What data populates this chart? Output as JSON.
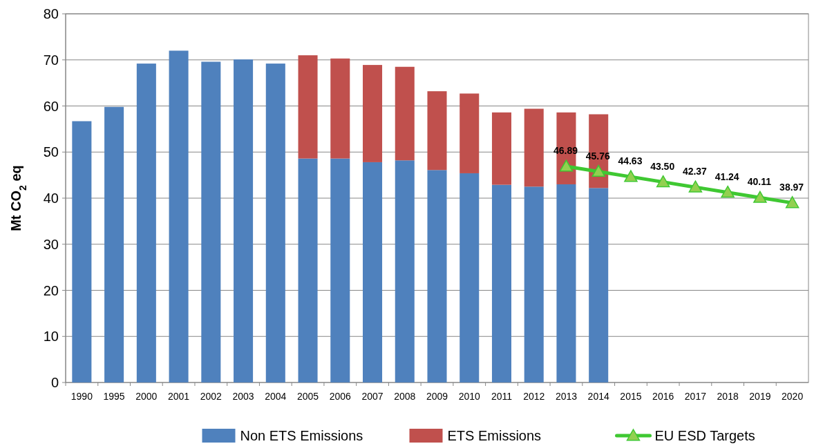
{
  "chart_data": {
    "type": "bar",
    "stacked": true,
    "ylabel": "Mt CO$_{2}$ eq",
    "categories": [
      "1990",
      "1995",
      "2000",
      "2001",
      "2002",
      "2003",
      "2004",
      "2005",
      "2006",
      "2007",
      "2008",
      "2009",
      "2010",
      "2011",
      "2012",
      "2013",
      "2014",
      "2015",
      "2016",
      "2017",
      "2018",
      "2019",
      "2020"
    ],
    "series": [
      {
        "name": "Non ETS Emissions",
        "color": "#4f81bd",
        "values": [
          56.7,
          59.8,
          69.2,
          72.0,
          69.6,
          70.1,
          69.2,
          48.6,
          48.6,
          47.8,
          48.2,
          46.1,
          45.4,
          42.9,
          42.5,
          43.0,
          42.2,
          null,
          null,
          null,
          null,
          null,
          null
        ]
      },
      {
        "name": "ETS Emissions",
        "color": "#c0504d",
        "values": [
          null,
          null,
          null,
          null,
          null,
          null,
          null,
          22.4,
          21.7,
          21.1,
          20.3,
          17.1,
          17.3,
          15.7,
          16.9,
          15.6,
          16.0,
          null,
          null,
          null,
          null,
          null,
          null
        ]
      },
      {
        "name": "EU ESD Targets",
        "type": "line",
        "color": "#3fc832",
        "marker": "triangle",
        "values": [
          null,
          null,
          null,
          null,
          null,
          null,
          null,
          null,
          null,
          null,
          null,
          null,
          null,
          null,
          null,
          46.89,
          45.76,
          44.63,
          43.5,
          42.37,
          41.24,
          40.11,
          38.97
        ],
        "value_labels": [
          null,
          null,
          null,
          null,
          null,
          null,
          null,
          null,
          null,
          null,
          null,
          null,
          null,
          null,
          null,
          "46.89",
          "45.76",
          "44.63",
          "43.50",
          "42.37",
          "41.24",
          "40.11",
          "38.97"
        ]
      }
    ],
    "ylim": [
      0,
      80
    ],
    "yticks": [
      0,
      10,
      20,
      30,
      40,
      50,
      60,
      70,
      80
    ],
    "grid": "y",
    "legend": "bottom"
  }
}
